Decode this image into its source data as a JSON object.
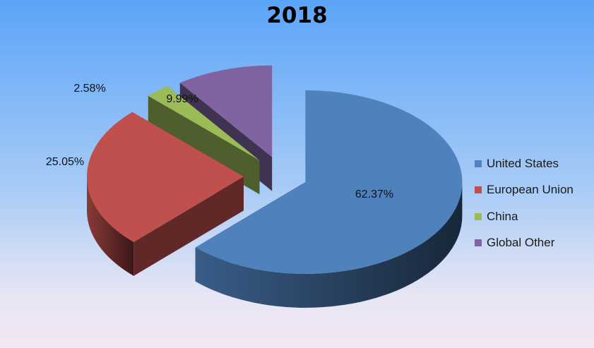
{
  "chart_data": {
    "type": "pie",
    "title": "2018",
    "categories": [
      "United States",
      "European Union",
      "China",
      "Global Other"
    ],
    "values": [
      62.37,
      25.05,
      2.58,
      9.99
    ],
    "labels": [
      "62.37%",
      "25.05%",
      "2.58%",
      "9.99%"
    ],
    "colors": [
      "#4f81bd",
      "#c0504d",
      "#9bbb59",
      "#8064a2"
    ],
    "legend": "right",
    "style": "3d-exploded"
  }
}
